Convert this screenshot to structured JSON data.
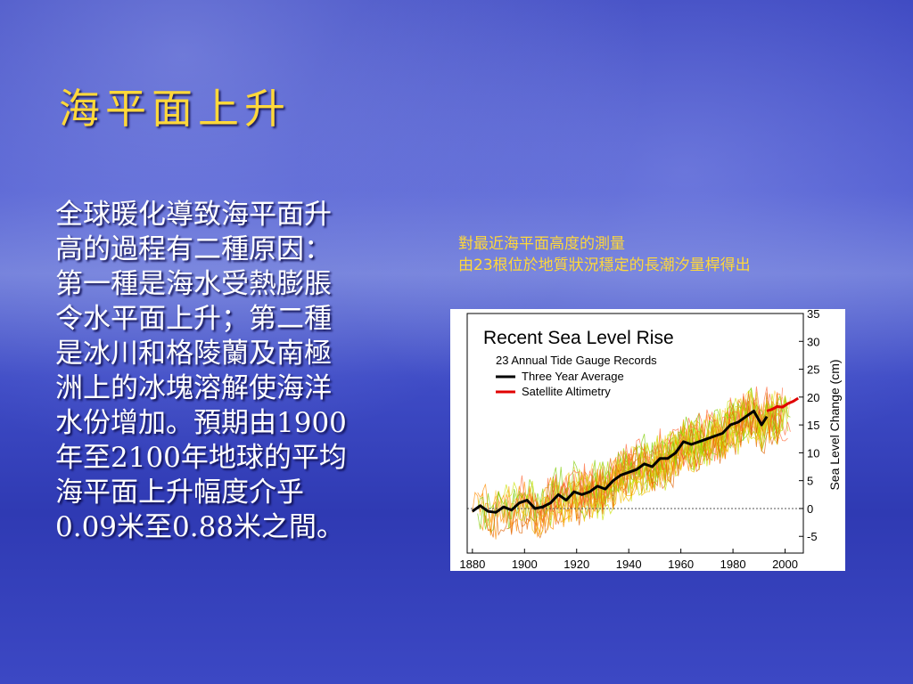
{
  "slide": {
    "title": "海平面上升",
    "body_lines": [
      "全球暖化導致海平面升",
      "高的過程有二種原因：",
      "第一種是海水受熱膨脹",
      "令水平面上升；第二種",
      "是冰川和格陵蘭及南極",
      "洲上的冰塊溶解使海洋",
      "水份增加。預期由1900",
      "年至2100年地球的平均",
      "海平面上升幅度介乎",
      "0.09米至0.88米之間。"
    ],
    "caption_line1": "對最近海平面高度的測量",
    "caption_line2": "由23根位於地質狀況穩定的長潮汐量桿得出"
  },
  "chart_data": {
    "type": "line",
    "title": "Recent Sea Level Rise",
    "subtitle": "23 Annual Tide Gauge Records",
    "xlabel": "",
    "ylabel": "Sea Level Change (cm)",
    "xlim": [
      1878,
      2007
    ],
    "ylim": [
      -8,
      35
    ],
    "x_ticks": [
      1880,
      1900,
      1920,
      1940,
      1960,
      1980,
      2000
    ],
    "y_ticks": [
      -5,
      0,
      5,
      10,
      15,
      20,
      25,
      30,
      35
    ],
    "zero_line": true,
    "legend_position": "top-left",
    "series": [
      {
        "name": "Three Year Average",
        "color": "#000000",
        "x": [
          1880,
          1883,
          1886,
          1889,
          1892,
          1895,
          1898,
          1901,
          1904,
          1907,
          1910,
          1913,
          1916,
          1919,
          1922,
          1925,
          1928,
          1931,
          1934,
          1937,
          1940,
          1943,
          1946,
          1949,
          1952,
          1955,
          1958,
          1961,
          1964,
          1967,
          1970,
          1973,
          1976,
          1979,
          1982,
          1985,
          1988,
          1991,
          1993
        ],
        "y": [
          -0.5,
          0.5,
          -0.5,
          -0.7,
          0.3,
          -0.3,
          1,
          1.5,
          0,
          0.3,
          1,
          2.5,
          1.5,
          3,
          2.5,
          3,
          4,
          3.5,
          5,
          6,
          6.5,
          7,
          8,
          7.5,
          9,
          9,
          10,
          12,
          11.5,
          12,
          12.5,
          13,
          13.5,
          15,
          15.5,
          16.5,
          17.5,
          15,
          16.5
        ]
      },
      {
        "name": "Satellite Altimetry",
        "color": "#e00000",
        "x": [
          1993,
          1995,
          1997,
          1999,
          2001,
          2003,
          2005
        ],
        "y": [
          17.5,
          17.8,
          18.3,
          18.2,
          18.8,
          19.2,
          19.8
        ]
      }
    ],
    "background_records": {
      "name": "23 Annual Tide Gauge Records",
      "colors": [
        "#f3c200",
        "#ff8c00",
        "#ffd24d",
        "#7fcc00",
        "#e06000",
        "#c8e000",
        "#ff6a3a",
        "#a8d800"
      ],
      "noise_amplitude_cm": 4
    }
  }
}
